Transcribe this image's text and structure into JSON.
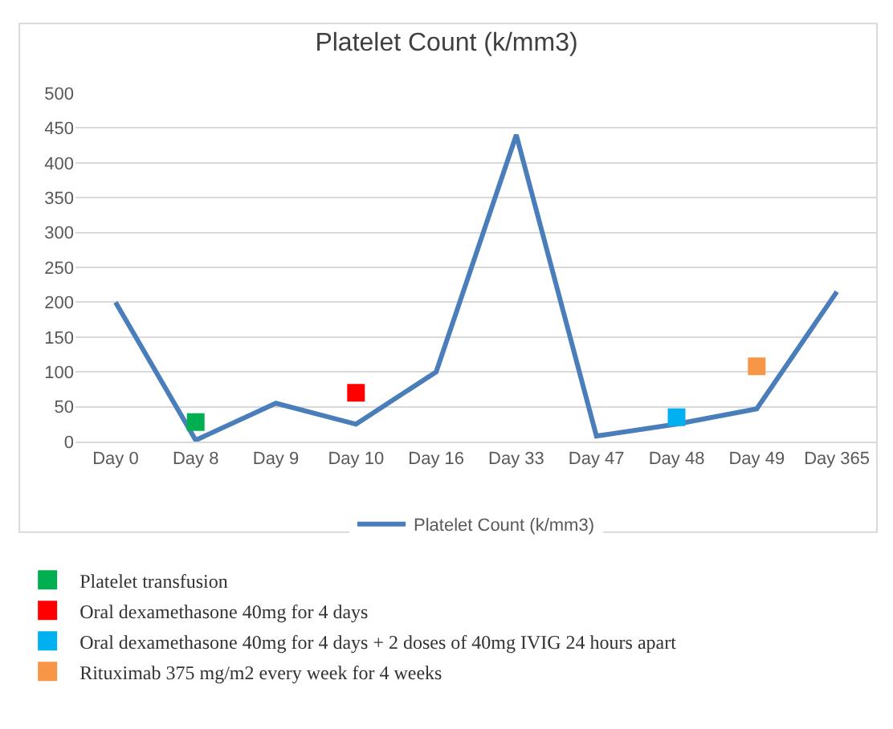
{
  "chart_data": {
    "type": "line",
    "title": "Platelet Count (k/mm3)",
    "categories": [
      "Day 0",
      "Day 8",
      "Day 9",
      "Day 10",
      "Day 16",
      "Day 33",
      "Day 47",
      "Day 48",
      "Day 49",
      "Day 365"
    ],
    "ylim": [
      0,
      500
    ],
    "yticks": [
      0,
      50,
      100,
      150,
      200,
      250,
      300,
      350,
      400,
      450,
      500
    ],
    "grid": "y",
    "legend": "bottom",
    "series": [
      {
        "name": "Platelet Count (k/mm3)",
        "color": "#4a7ebb",
        "values": [
          200,
          2,
          55,
          25,
          100,
          440,
          8,
          25,
          47,
          215
        ]
      },
      {
        "name": "Platelet transfusion",
        "type": "scatter",
        "marker": "square",
        "color": "#00b050",
        "x": [
          "Day 8"
        ],
        "values": [
          28
        ]
      },
      {
        "name": "Oral dexamethasone 40mg for 4 days",
        "type": "scatter",
        "marker": "square",
        "color": "#ff0000",
        "x": [
          "Day 10"
        ],
        "values": [
          70
        ]
      },
      {
        "name": "Oral dexamethasone 40mg for 4 days + 2 doses of 40mg IVIG 24 hours apart",
        "type": "scatter",
        "marker": "square",
        "color": "#00b0f0",
        "x": [
          "Day 48"
        ],
        "values": [
          35
        ]
      },
      {
        "name": "Rituximab 375 mg/m2 every week for 4 weeks",
        "type": "scatter",
        "marker": "square",
        "color": "#f79646",
        "x": [
          "Day 49"
        ],
        "values": [
          108
        ]
      }
    ]
  }
}
